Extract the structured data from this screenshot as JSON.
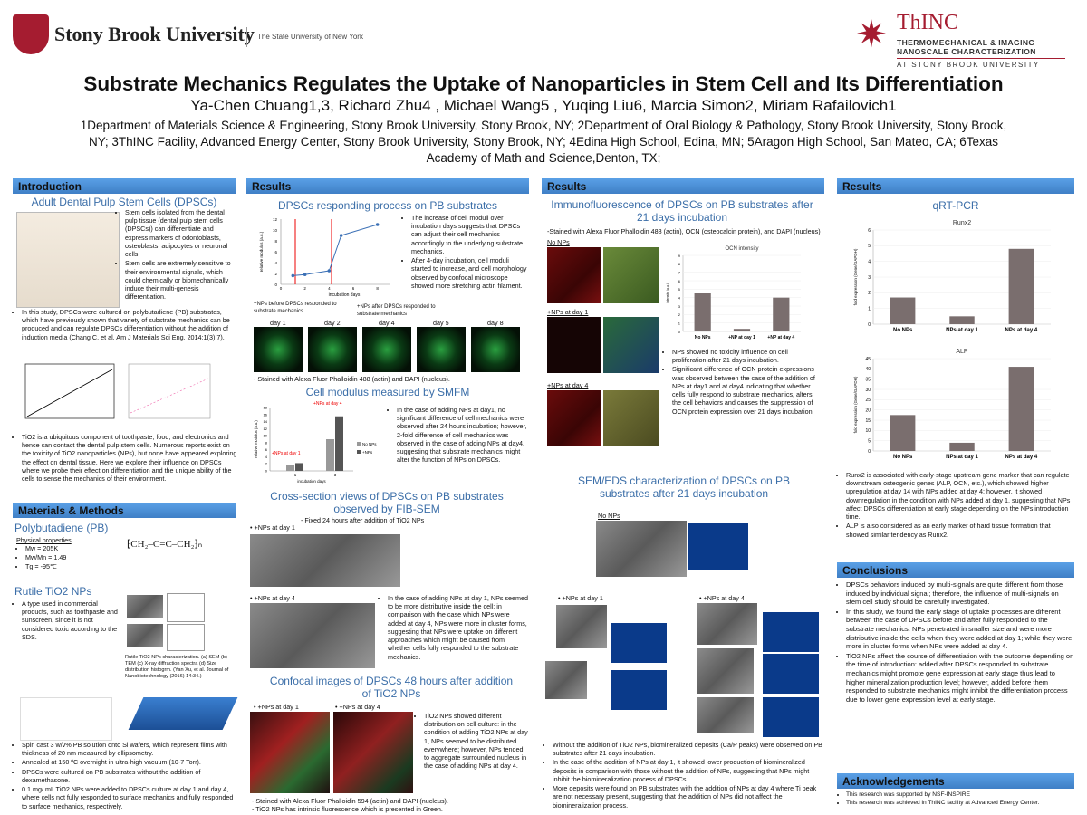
{
  "header": {
    "sbu_name": "Stony Brook University",
    "sbu_tagline": "The State University of New York",
    "thinc_name": "ThINC",
    "thinc_line1": "THERMOMECHANICAL & IMAGING",
    "thinc_line2": "NANOSCALE CHARACTERIZATION",
    "thinc_line3": "AT STONY BROOK UNIVERSITY",
    "title": "Substrate Mechanics Regulates the Uptake of Nanoparticles in Stem Cell and Its Differentiation",
    "authors": "Ya-Chen Chuang1,3, Richard Zhu4 , Michael Wang5 , Yuqing Liu6, Marcia Simon2, Miriam Rafailovich1",
    "affil1": "1Department of Materials Science & Engineering, Stony Brook University, Stony Brook, NY; 2Department of Oral Biology & Pathology, Stony Brook University, Stony Brook,",
    "affil2": "NY;  3ThINC Facility, Advanced Energy Center, Stony Brook University, Stony Brook, NY; 4Edina High School, Edina, MN;  5Aragon High School, San Mateo, CA; 6Texas",
    "affil3": "Academy of Math and Science,Denton, TX;"
  },
  "col1": {
    "intro_head": "Introduction",
    "intro_sub": "Adult Dental Pulp Stem Cells (DPSCs)",
    "b1": "Stem cells isolated from the dental pulp tissue (dental pulp stem cells (DPSCs)) can differentiate and express markers of odontoblasts, osteoblasts, adipocytes or neuronal cells.",
    "b2": "Stem cells are extremely sensitive to their environmental signals, which could chemically or biomechanically induce their multi-genesis differentiation.",
    "b3": "In this study, DPSCs were cultured on polybutadiene (PB) substrates, which have previously shown that variety of substrate mechanics can be produced and can regulate DPSCs differentiation without the addition of induction media (Chang C, et al. Am J Materials Sci Eng. 2014;1(3):7).",
    "b4": "TiO2 is a ubiquitous component of toothpaste, food, and electronics and hence can contact the dental pulp stem cells. Numerous reports exist on the toxicity of TiO2 nanoparticles (NPs), but none have appeared exploring the effect on dental tissue. Here we explore their influence on DPSCs where we probe their effect on differentiation and the unique ability of the cells to sense the mechanics of their environment.",
    "mm_head": "Materials & Methods",
    "pb_sub": "Polybutadiene (PB)",
    "props_label": "Physical properties",
    "p1": "Mw = 205K",
    "p2": "Mw/Mn = 1.49",
    "p3": "Tg = -95℃",
    "tio2_sub": "Rutile TiO2 NPs",
    "tio2_b1": "A type used in commercial products, such as toothpaste and sunscreen, since it is not considered toxic according to the SDS.",
    "tio2_cap": "Rutile TiO2 NPs characterization. (a) SEM (b) TEM (c) X-ray diffraction spectra (d) Size distribution histogrm. (Yan Xu, et al. Journal of Nanobiotechnology (2016) 14:34.)",
    "m1": "Spin cast 3 w/v% PB solution onto Si wafers, which represent films with thickness of 20 nm measured by ellipsometry.",
    "m2": "Annealed at 150 ºC overnight in ultra-high vacuum (10-7 Torr).",
    "m3": "DPSCs were cultured on PB substrates without the addition of dexamethasone.",
    "m4": "0.1 mg/ mL TiO2 NPs were added to DPSCs culture at day 1 and day 4, where cells not fully responded to surface mechanics and fully responded to surface mechanics, respectively."
  },
  "col2": {
    "head": "Results",
    "sub1": "DPSCs responding process on PB substrates",
    "b1": "The increase of cell moduli over incubation days suggests that DPSCs can adjust their cell mechanics accordingly to the underlying substrate mechanics.",
    "b2": "After 4-day incubation, cell moduli started to increase, and cell morphology observed by confocal microscope showed more stretching actin filament.",
    "np_before": "+NPs before DPSCs responded to substrate mechanics",
    "np_after": "+NPs after DPSCs responded to substrate mechanics",
    "days": [
      "day 1",
      "day 2",
      "day 4",
      "day 5",
      "day 8"
    ],
    "stain1": "Stained with Alexa Fluor Phalloidin 488 (actin) and DAPI (nucleus).",
    "sub2": "Cell modulus measured by SMFM",
    "smfm_text": "In the case of adding NPs at day1, no significant difference of cell mechanics were observed after 24 hours incubation; however, 2-fold difference of cell mechanics was observed in the case of adding NPs at day4, suggesting that substrate mechanics might alter the function of NPs on DPSCs.",
    "sub3": "Cross-section views of DPSCs on PB substrates observed by FIB-SEM",
    "fib_note": "Fixed 24 hours after addition of TiO2 NPs",
    "np_day1": "+NPs at day 1",
    "np_day4": "+NPs at day 4",
    "fib_text": "In the case of adding NPs at day 1, NPs seemed to be more distributive inside the cell; in comparison with the case which NPs were added at day 4, NPs were more in cluster forms, suggesting that NPs were uptake on different approaches which might be caused from whether cells fully responded to the substrate mechanics.",
    "sub4": "Confocal images of DPSCs 48 hours after addition of TiO2 NPs",
    "conf_text": "TiO2 NPs showed different distribution on cell culture: in the condition of adding TiO2 NPs at day 1, NPs seemed to be distributed everywhere; however, NPs tended to aggregate surrounded nucleus in the case of adding NPs at day 4.",
    "stain2": "Stained with Alexa Fluor Phalloidin 594 (actin) and DAPI (nucleus).",
    "stain3": "TiO2 NPs has intrinsic fluorescence which is presented in Green.",
    "scale": "5 µm"
  },
  "col3": {
    "head": "Results",
    "sub1": "Immunofluorescence of DPSCs on PB substrates after 21 days incubation",
    "stain": "-Stained with Alexa Fluor Phalloidin 488 (actin), OCN (osteocalcin protein), and DAPI (nucleus)",
    "no_nps": "No NPs",
    "np_day1": "+NPs at day 1",
    "np_day4": "+NPs at day 4",
    "b1": "NPs showed no toxicity influence on cell proliferation after 21 days incubation.",
    "b2": "Significant difference of OCN protein expressions was observed between the case of the addition of NPs at day1 and at day4 indicating that whether cells fully respond to substrate mechanics, alters the cell behaviors and causes the suppression of OCN protein expression over 21 days incubation.",
    "sub2": "SEM/EDS characterization of DPSCs on PB substrates after 21 days incubation",
    "b3": "Without the addition of TiO2 NPs, biomineralized deposits (Ca/P peaks) were observed on PB substrates after 21 days incubation.",
    "b4": "In the case of the addition of NPs at day 1, it showed lower production of biomineralized deposits in comparison with those without the addition of NPs, suggesting that NPs might inhibit the biomineralization process of DPSCs.",
    "b5": "More deposits were found on PB substrates with the addition of NPs at day 4 where Ti peak are not necessary present, suggesting that the addition of NPs did not affect the biomineralization process."
  },
  "col4": {
    "head": "Results",
    "sub1": "qRT-PCR",
    "b1": "Runx2 is associated with early-stage upstream gene marker that can regulate downstream osteogenic genes (ALP, OCN, etc.), which showed higher upregulation at day 14 with NPs added at day 4; however, it showed downregulation in the condition with NPs added at day 1, suggesting that NPs affect DPSCs differentiation at early stage depending on the NPs introduction time.",
    "b2": "ALP is also considered as an early marker of hard tissue formation that showed similar tendency as Runx2.",
    "concl_head": "Conclusions",
    "c1": "DPSCs behaviors induced by multi-signals are quite different from those induced by individual signal; therefore, the influence of multi-signals on stem cell study should be carefully investigated.",
    "c2": "In this study, we found the early stage of uptake processes are different between the case of DPSCs before and after fully responded to the substrate mechanics: NPs penetrated in smaller size and were more distributive inside the cells when they were added at day 1; while they were more in cluster forms when NPs were added at day 4.",
    "c3": "TiO2 NPs affect the course of differentiation with the outcome depending on the time of introduction: added after DPSCs responded to substrate mechanics might promote gene expression at early stage thus lead to higher mineralization production level; however, added before them responded to substrate mechanics might inhibit the differentiation process due to lower gene expression level at early stage.",
    "ack_head": "Acknowledgements",
    "a1": "This research was supported by NSF-INSPIRE",
    "a2": "This research was achieved in ThINC facility at Advanced Energy Center."
  },
  "chart_data": [
    {
      "type": "line",
      "ylabel": "relative modulus (a.u.)",
      "xlabel": "incubation days",
      "x": [
        1,
        2,
        4,
        5,
        8
      ],
      "values": [
        1.6,
        1.8,
        2.5,
        9.0,
        11.0
      ],
      "ylim": [
        0,
        12
      ]
    },
    {
      "type": "bar",
      "ylabel": "relative modulus (a.u.)",
      "xlabel": "incubation days",
      "categories": [
        "1",
        "3"
      ],
      "series": [
        {
          "name": "No NPs",
          "values": [
            1.8,
            9.0
          ]
        },
        {
          "name": "+NPs",
          "values": [
            2.2,
            15.5
          ]
        }
      ],
      "annotations": [
        "+NPs at day 1",
        "+NPs at day 4"
      ],
      "ylim": [
        0,
        18
      ]
    },
    {
      "type": "bar",
      "title": "OCN intensity",
      "ylabel": "intensity (a.u.)",
      "categories": [
        "No NPs",
        "+NP at day 1",
        "+NP at day 4"
      ],
      "values": [
        4.5,
        0.3,
        4.0
      ],
      "ylim": [
        0,
        9
      ]
    },
    {
      "type": "bar",
      "title": "Runx2",
      "ylabel": "fold expression (Gene/GAPDH)",
      "categories": [
        "No NPs",
        "NPs at day 1",
        "NPs at day 4"
      ],
      "values": [
        1.7,
        0.5,
        4.8
      ],
      "ylim": [
        0,
        6
      ]
    },
    {
      "type": "bar",
      "title": "ALP",
      "ylabel": "fold expression (Gene/GAPDH)",
      "categories": [
        "No NPs",
        "NPs at day 1",
        "NPs at day 4"
      ],
      "values": [
        17.5,
        4.0,
        41.0
      ],
      "ylim": [
        0,
        45
      ]
    }
  ]
}
